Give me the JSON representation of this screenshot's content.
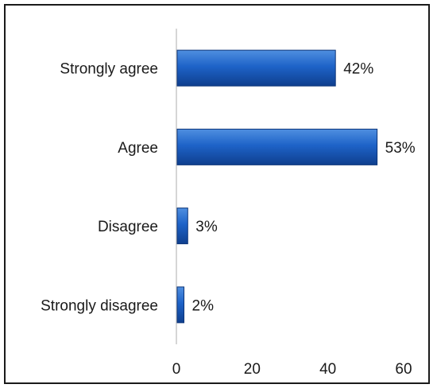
{
  "chart_data": {
    "type": "bar",
    "orientation": "horizontal",
    "categories": [
      "Strongly agree",
      "Agree",
      "Disagree",
      "Strongly disagree"
    ],
    "values": [
      42,
      53,
      3,
      2
    ],
    "data_labels": [
      "42%",
      "53%",
      "3%",
      "2%"
    ],
    "x_ticks": [
      "0",
      "20",
      "40",
      "60"
    ],
    "xlim": [
      0,
      60
    ],
    "grid": false,
    "legend": "none",
    "title": "",
    "xlabel": "",
    "ylabel": "",
    "colors": {
      "bar_top": "#4f8fe0",
      "bar_mid": "#1e63c8",
      "bar_bottom": "#0f3f8e",
      "bar_stroke": "#0c3478",
      "axis": "#c8c8c8"
    }
  }
}
